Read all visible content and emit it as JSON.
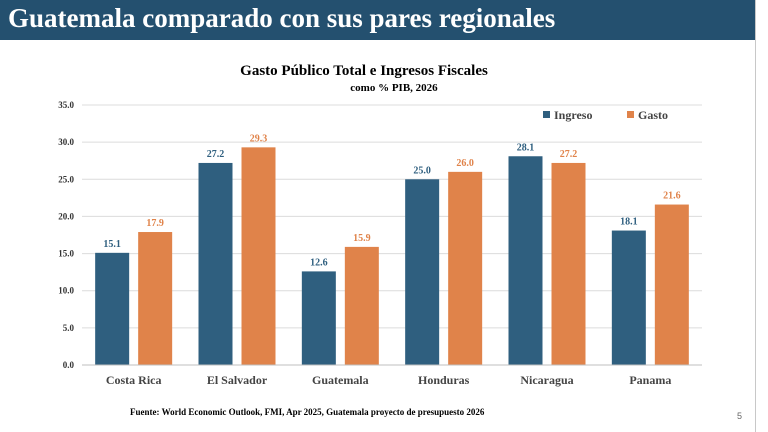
{
  "header": {
    "title": "Guatemala comparado con sus pares regionales"
  },
  "colors": {
    "header_bg": "#24506f",
    "ingreso": "#2f5f7f",
    "gasto": "#e0834a",
    "gridline": "#dcdcdc"
  },
  "chart_data": {
    "type": "bar",
    "title": "Gasto Público Total e Ingresos Fiscales",
    "subtitle": "como % PIB, 2026",
    "categories": [
      "Costa Rica",
      "El Salvador",
      "Guatemala",
      "Honduras",
      "Nicaragua",
      "Panama"
    ],
    "series": [
      {
        "name": "Ingreso",
        "color": "#2f5f7f",
        "values": [
          15.1,
          27.2,
          12.6,
          25.0,
          28.1,
          18.1
        ],
        "labels": [
          "15.1",
          "27.2",
          "12.6",
          "25.0",
          "28.1",
          "18.1"
        ]
      },
      {
        "name": "Gasto",
        "color": "#e0834a",
        "values": [
          17.9,
          29.3,
          15.9,
          26.0,
          27.2,
          21.6
        ],
        "labels": [
          "17.9",
          "29.3",
          "15.9",
          "26.0",
          "27.2",
          "21.6"
        ]
      }
    ],
    "yticks": [
      "0.0",
      "5.0",
      "10.0",
      "15.0",
      "20.0",
      "25.0",
      "30.0",
      "35.0"
    ],
    "ylim": [
      0,
      35
    ],
    "grid": true,
    "legend": "top-right"
  },
  "footer": {
    "source": "Fuente: World Economic Outlook, FMI, Apr 2025, Guatemala proyecto de presupuesto 2026",
    "page_number": "5"
  }
}
